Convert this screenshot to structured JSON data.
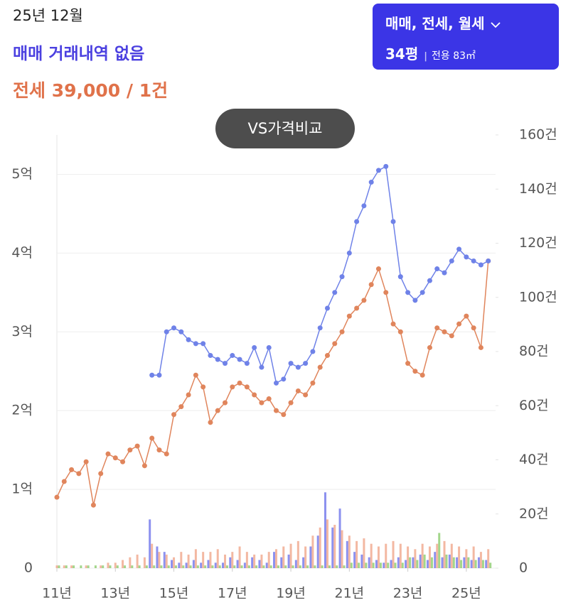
{
  "header": {
    "date": "25년 12월",
    "sale_status": "매매 거래내역 없음",
    "jeonse": "전세 39,000 / 1건"
  },
  "filter": {
    "label": "매매, 전세, 월세",
    "size": "34평",
    "area": "전용 83㎡"
  },
  "compare_button": "VS가격비교",
  "chart_data": {
    "type": "line",
    "grid": true,
    "x": [
      11,
      11.25,
      11.5,
      11.75,
      12,
      12.25,
      12.5,
      12.75,
      13,
      13.25,
      13.5,
      13.75,
      14,
      14.25,
      14.5,
      14.75,
      15,
      15.25,
      15.5,
      15.75,
      16,
      16.25,
      16.5,
      16.75,
      17,
      17.25,
      17.5,
      17.75,
      18,
      18.25,
      18.5,
      18.75,
      19,
      19.25,
      19.5,
      19.75,
      20,
      20.25,
      20.5,
      20.75,
      21,
      21.25,
      21.5,
      21.75,
      22,
      22.25,
      22.5,
      22.75,
      23,
      23.25,
      23.5,
      23.75,
      24,
      24.25,
      24.5,
      24.75,
      25,
      25.25,
      25.5,
      25.75
    ],
    "xlim": [
      11,
      26
    ],
    "xticks": [
      {
        "value": 11,
        "label": "11년"
      },
      {
        "value": 13,
        "label": "13년"
      },
      {
        "value": 15,
        "label": "15년"
      },
      {
        "value": 17,
        "label": "17년"
      },
      {
        "value": 19,
        "label": "19년"
      },
      {
        "value": 21,
        "label": "21년"
      },
      {
        "value": 23,
        "label": "23년"
      },
      {
        "value": 25,
        "label": "25년"
      }
    ],
    "ylim": [
      0,
      5.5
    ],
    "yticks": [
      0,
      {
        "value": 1,
        "label": "1억"
      },
      {
        "value": 2,
        "label": "2억"
      },
      {
        "value": 3,
        "label": "3억"
      },
      {
        "value": 4,
        "label": "4억"
      },
      {
        "value": 5,
        "label": "5억"
      }
    ],
    "y2lim": [
      0,
      160
    ],
    "y2ticks": [
      0,
      {
        "value": 20,
        "label": "20건"
      },
      {
        "value": 40,
        "label": "40건"
      },
      {
        "value": 60,
        "label": "60건"
      },
      {
        "value": 80,
        "label": "80건"
      },
      {
        "value": 100,
        "label": "100건"
      },
      {
        "value": 120,
        "label": "120건"
      },
      {
        "value": 140,
        "label": "140건"
      },
      {
        "value": 160,
        "label": "160건"
      }
    ],
    "series": [
      {
        "color": "#e0855c",
        "values": [
          0.9,
          1.1,
          1.25,
          1.2,
          1.35,
          0.8,
          1.2,
          1.45,
          1.4,
          1.35,
          1.5,
          1.55,
          1.3,
          1.65,
          1.5,
          1.45,
          1.95,
          2.05,
          2.2,
          2.45,
          2.3,
          1.85,
          2.0,
          2.1,
          2.3,
          2.35,
          2.3,
          2.2,
          2.1,
          2.15,
          2.0,
          1.95,
          2.1,
          2.25,
          2.2,
          2.35,
          2.55,
          2.7,
          2.85,
          3.0,
          3.2,
          3.3,
          3.4,
          3.6,
          3.8,
          3.5,
          3.1,
          3.0,
          2.6,
          2.5,
          2.45,
          2.8,
          3.05,
          3.0,
          2.95,
          3.1,
          3.2,
          3.05,
          2.8,
          3.9
        ]
      },
      {
        "color": "#6f82e8",
        "values": [
          null,
          null,
          null,
          null,
          null,
          null,
          null,
          null,
          null,
          null,
          null,
          null,
          null,
          2.45,
          2.45,
          3.0,
          3.05,
          3.0,
          2.9,
          2.85,
          2.85,
          2.7,
          2.65,
          2.6,
          2.7,
          2.65,
          2.6,
          2.8,
          2.55,
          2.8,
          2.35,
          2.4,
          2.6,
          2.55,
          2.6,
          2.75,
          3.05,
          3.3,
          3.5,
          3.7,
          4.0,
          4.4,
          4.6,
          4.9,
          5.05,
          5.1,
          4.4,
          3.7,
          3.5,
          3.4,
          3.5,
          3.65,
          3.8,
          3.75,
          3.9,
          4.05,
          3.95,
          3.9,
          3.85,
          3.9
        ]
      },
      {
        "type": "bar",
        "axis": "y2",
        "color": "#5b63e8",
        "values": [
          0,
          0,
          0,
          0,
          0,
          0,
          0,
          0,
          0,
          0,
          0,
          0,
          0,
          18,
          8,
          6,
          3,
          2,
          2,
          3,
          2,
          3,
          2,
          2,
          4,
          3,
          2,
          4,
          3,
          2,
          6,
          4,
          5,
          3,
          4,
          8,
          12,
          28,
          15,
          22,
          10,
          6,
          5,
          4,
          3,
          2,
          3,
          4,
          3,
          4,
          5,
          3,
          6,
          4,
          5,
          4,
          4,
          3,
          4,
          3
        ]
      },
      {
        "type": "bar",
        "axis": "y2",
        "color": "#ee9a7a",
        "values": [
          1,
          1,
          1,
          0,
          1,
          0,
          1,
          2,
          2,
          3,
          4,
          5,
          4,
          9,
          6,
          5,
          4,
          6,
          5,
          7,
          6,
          6,
          7,
          5,
          6,
          8,
          6,
          5,
          5,
          6,
          7,
          8,
          9,
          10,
          8,
          12,
          15,
          18,
          16,
          14,
          12,
          10,
          11,
          9,
          8,
          9,
          10,
          9,
          8,
          7,
          9,
          8,
          9,
          10,
          9,
          8,
          7,
          8,
          6,
          7
        ]
      },
      {
        "type": "bar",
        "axis": "y2",
        "color": "#7cc45a",
        "values": [
          1,
          1,
          1,
          1,
          1,
          1,
          1,
          1,
          1,
          1,
          1,
          1,
          1,
          1,
          1,
          1,
          1,
          1,
          1,
          1,
          1,
          1,
          1,
          1,
          1,
          1,
          1,
          1,
          1,
          1,
          1,
          1,
          1,
          1,
          1,
          1,
          1,
          1,
          1,
          1,
          2,
          2,
          2,
          2,
          2,
          2,
          2,
          2,
          4,
          3,
          5,
          4,
          13,
          5,
          4,
          3,
          4,
          3,
          3,
          2
        ]
      }
    ]
  }
}
